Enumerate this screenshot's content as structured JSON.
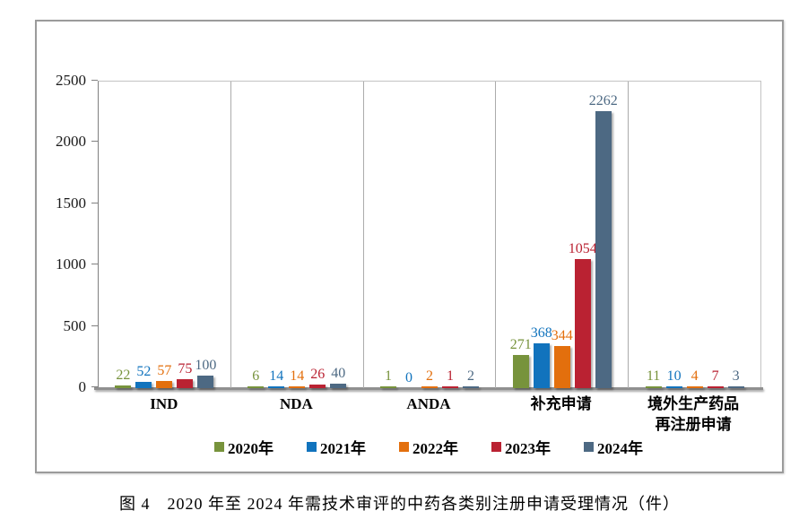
{
  "figure": {
    "caption": "图 4　2020 年至 2024 年需技术审评的中药各类别注册申请受理情况（件）"
  },
  "chart_data": {
    "type": "bar",
    "title": "",
    "xlabel": "",
    "ylabel": "",
    "categories": [
      "IND",
      "NDA",
      "ANDA",
      "补充申请",
      "境外生产药品\n再注册申请"
    ],
    "series": [
      {
        "name": "2020年",
        "color": "#77933C",
        "values": [
          22,
          6,
          1,
          271,
          11
        ]
      },
      {
        "name": "2021年",
        "color": "#1173BD",
        "values": [
          52,
          14,
          0,
          368,
          10
        ]
      },
      {
        "name": "2022年",
        "color": "#E36F0D",
        "values": [
          57,
          14,
          2,
          344,
          4
        ]
      },
      {
        "name": "2023年",
        "color": "#BA2232",
        "values": [
          75,
          26,
          1,
          1054,
          7
        ]
      },
      {
        "name": "2024年",
        "color": "#4D6983",
        "values": [
          100,
          40,
          2,
          2262,
          3
        ]
      }
    ],
    "ylim": [
      0,
      2500
    ],
    "yticks": [
      0,
      500,
      1000,
      1500,
      2000,
      2500
    ],
    "grid": "none",
    "legend_position": "bottom-center",
    "bar_label_position": "outside-end",
    "axis_color": "#808080",
    "separator_color": "#ABABAB",
    "frame_color": "#9B9B9B"
  }
}
